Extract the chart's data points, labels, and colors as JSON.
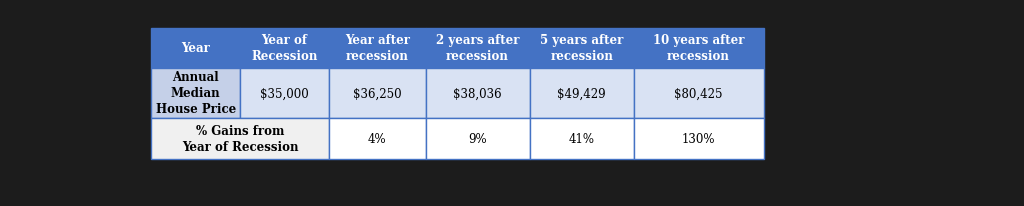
{
  "header_bg_color": "#4472C4",
  "header_text_color": "#FFFFFF",
  "row1_bg_color": "#C5D0E8",
  "row2_bg_color": "#F0F0F0",
  "row1_value_bg": "#D9E2F3",
  "border_color": "#4472C4",
  "bg_color": "#1C1C1C",
  "columns": [
    "Year",
    "Year of\nRecession",
    "Year after\nrecession",
    "2 years after\nrecession",
    "5 years after\nrecession",
    "10 years after\nrecession"
  ],
  "row1_label": "Annual\nMedian\nHouse Price",
  "row1_values": [
    "$35,000",
    "$36,250",
    "$38,036",
    "$49,429",
    "$80,425"
  ],
  "row2_label": "% Gains from\nYear of Recession",
  "row2_values": [
    "4%",
    "9%",
    "41%",
    "130%"
  ],
  "header_fontsize": 8.5,
  "cell_fontsize": 8.5,
  "fig_width": 10.24,
  "fig_height": 2.07
}
